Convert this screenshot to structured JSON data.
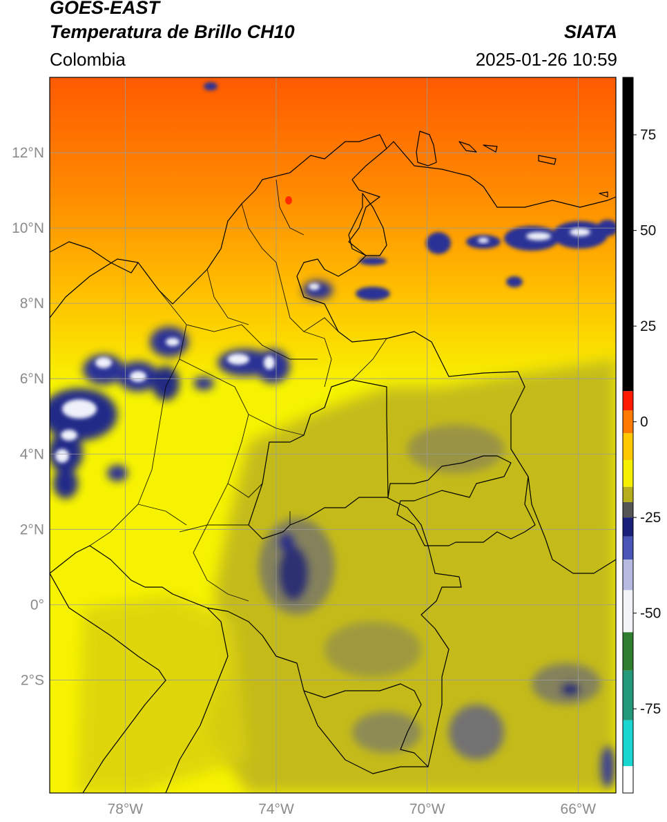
{
  "header": {
    "line1": "GOES-EAST",
    "line2": "Temperatura de Brillo CH10",
    "region": "Colombia",
    "agency": "SIATA",
    "timestamp": "2025-01-26 10:59"
  },
  "map": {
    "lat_labels": [
      "12°N",
      "10°N",
      "8°N",
      "6°N",
      "4°N",
      "2°N",
      "0°",
      "2°S"
    ],
    "lon_labels": [
      "78°W",
      "74°W",
      "70°W",
      "66°W"
    ],
    "lat_values": [
      12,
      10,
      8,
      6,
      4,
      2,
      0,
      -2
    ],
    "lon_values": [
      -78,
      -74,
      -70,
      -66
    ],
    "lon_range": [
      -80,
      -65
    ],
    "lat_range": [
      -5,
      14
    ],
    "colors": {
      "land_base": "#c2b91a",
      "warm_yellow": "#f7f300",
      "orange": "#ff8a00",
      "deep_orange": "#ff5a00",
      "cloud_navy": "#161c6e",
      "cloud_white": "#eef0fa",
      "gridline": "#9a9a9a",
      "border": "#000000"
    }
  },
  "colorbar": {
    "tick_labels": [
      "75",
      "50",
      "25",
      "0",
      "-25",
      "-50",
      "-75"
    ],
    "tick_values": [
      75,
      50,
      25,
      0,
      -25,
      -50,
      -75
    ],
    "range": [
      -97,
      90
    ],
    "segments": [
      {
        "from": 8,
        "to": 90,
        "color": "#000000"
      },
      {
        "from": 3,
        "to": 8,
        "color": "#ff1a00"
      },
      {
        "from": -3,
        "to": 3,
        "color": "#ff7a00"
      },
      {
        "from": -10,
        "to": -3,
        "color": "#ffc800"
      },
      {
        "from": -17,
        "to": -10,
        "color": "#f5f000"
      },
      {
        "from": -21,
        "to": -17,
        "color": "#b5ad1c"
      },
      {
        "from": -25,
        "to": -21,
        "color": "#555555"
      },
      {
        "from": -30,
        "to": -25,
        "color": "#1a1f7a"
      },
      {
        "from": -36,
        "to": -30,
        "color": "#4a55b8"
      },
      {
        "from": -44,
        "to": -36,
        "color": "#b6b9e0"
      },
      {
        "from": -55,
        "to": -44,
        "color": "#f2f4f8"
      },
      {
        "from": -65,
        "to": -55,
        "color": "#2f7d2f"
      },
      {
        "from": -78,
        "to": -65,
        "color": "#229a7a"
      },
      {
        "from": -90,
        "to": -78,
        "color": "#1ad6d0"
      },
      {
        "from": -97,
        "to": -90,
        "color": "#ffffff"
      }
    ]
  }
}
